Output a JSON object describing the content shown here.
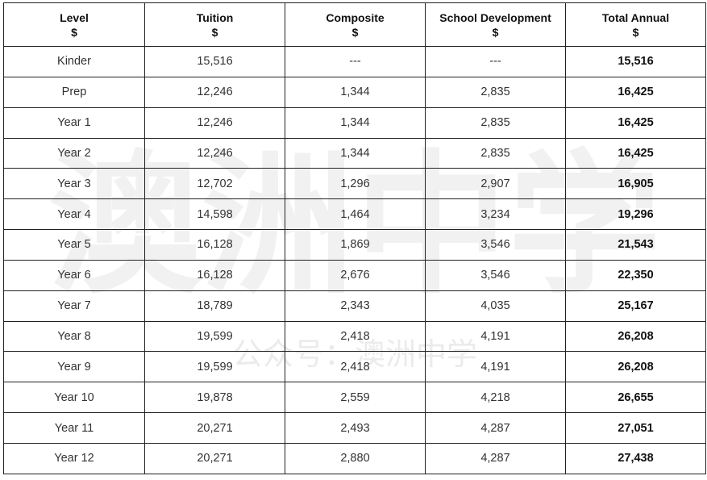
{
  "headers": [
    {
      "name": "Level",
      "unit": "$"
    },
    {
      "name": "Tuition",
      "unit": "$"
    },
    {
      "name": "Composite",
      "unit": "$"
    },
    {
      "name": "School Development",
      "unit": "$"
    },
    {
      "name": "Total Annual",
      "unit": "$"
    }
  ],
  "rows": [
    [
      "Kinder",
      "15,516",
      "---",
      "---",
      "15,516"
    ],
    [
      "Prep",
      "12,246",
      "1,344",
      "2,835",
      "16,425"
    ],
    [
      "Year 1",
      "12,246",
      "1,344",
      "2,835",
      "16,425"
    ],
    [
      "Year 2",
      "12,246",
      "1,344",
      "2,835",
      "16,425"
    ],
    [
      "Year 3",
      "12,702",
      "1,296",
      "2,907",
      "16,905"
    ],
    [
      "Year 4",
      "14,598",
      "1,464",
      "3,234",
      "19,296"
    ],
    [
      "Year 5",
      "16,128",
      "1,869",
      "3,546",
      "21,543"
    ],
    [
      "Year 6",
      "16,128",
      "2,676",
      "3,546",
      "22,350"
    ],
    [
      "Year 7",
      "18,789",
      "2,343",
      "4,035",
      "25,167"
    ],
    [
      "Year 8",
      "19,599",
      "2,418",
      "4,191",
      "26,208"
    ],
    [
      "Year 9",
      "19,599",
      "2,418",
      "4,191",
      "26,208"
    ],
    [
      "Year 10",
      "19,878",
      "2,559",
      "4,218",
      "26,655"
    ],
    [
      "Year 11",
      "20,271",
      "2,493",
      "4,287",
      "27,051"
    ],
    [
      "Year 12",
      "20,271",
      "2,880",
      "4,287",
      "27,438"
    ]
  ],
  "watermark": {
    "main": "澳洲中学",
    "sub": "公众号：澳洲中学"
  },
  "colors": {
    "border": "#222222",
    "watermark": "#d9d9d9"
  }
}
